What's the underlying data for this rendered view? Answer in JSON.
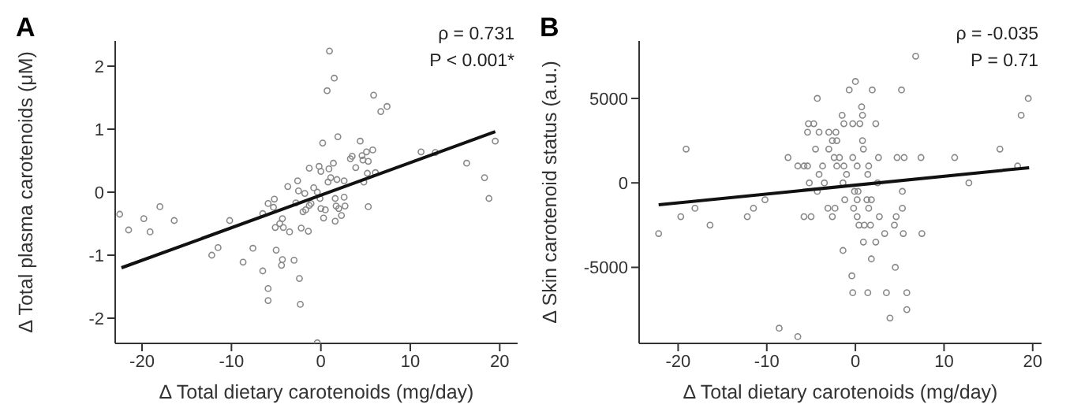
{
  "chart_data": [
    {
      "type": "scatter",
      "title": "A",
      "xlabel": "Δ Total dietary carotenoids (mg/day)",
      "ylabel": "Δ Total plasma carotenoids (μM)",
      "annotations": [
        "ρ = 0.731",
        "P < 0.001*"
      ],
      "xlim": [
        -23,
        22
      ],
      "xticks": [
        -20,
        -10,
        0,
        10,
        20
      ],
      "ylim": [
        -2.4,
        2.4
      ],
      "yticks": [
        -2,
        -1,
        0,
        1,
        2
      ],
      "series": [
        {
          "type": "scatter",
          "color": "#888888",
          "marker": "circle",
          "x": [
            -22.5,
            -21.5,
            -19.8,
            -19.1,
            -18.0,
            -16.4,
            -12.2,
            -11.5,
            -10.2,
            -8.7,
            -7.6,
            -6.5,
            -5.9,
            -5.9,
            -5.0,
            -4.3,
            -4.4,
            -3.0,
            -2.4,
            -2.3,
            -0.4,
            -6.5,
            -5.9,
            -5.2,
            -5.3,
            -5.1,
            -4.6,
            -4.2,
            -3.5,
            -4.3,
            -3.7,
            -2.6,
            -2.5,
            -2.8,
            -2.2,
            -2.0,
            -1.7,
            -1.4,
            -1.3,
            -1.8,
            -1.3,
            -1.1,
            -0.8,
            -0.4,
            -0.2,
            0,
            0.2,
            -0.1,
            0,
            0.3,
            0.5,
            0.8,
            0.9,
            1.1,
            1.4,
            1.6,
            1.8,
            1.7,
            1.6,
            2.0,
            2.3,
            2.6,
            2.7,
            2.6,
            3.3,
            3.5,
            3.9,
            4.4,
            4.6,
            4.7,
            5.1,
            5.2,
            5.3,
            5.8,
            4.8,
            5.3,
            6.1,
            11.2,
            12.8,
            16.3,
            18.3,
            18.8,
            19.5,
            0.96,
            1.5,
            0.7,
            5.9,
            6.7,
            7.4,
            1.9
          ],
          "values": [
            -0.35,
            -0.6,
            -0.42,
            -0.63,
            -0.23,
            -0.45,
            -1.0,
            -0.88,
            -0.45,
            -1.11,
            -0.89,
            -1.25,
            -1.53,
            -1.72,
            -0.92,
            -1.07,
            -1.16,
            -1.08,
            -1.37,
            -1.78,
            -2.39,
            -0.34,
            -0.18,
            -0.11,
            -0.24,
            -0.56,
            -0.5,
            -0.56,
            -0.63,
            -0.42,
            0.09,
            0.18,
            0.02,
            -0.17,
            -0.57,
            -0.31,
            -0.28,
            -0.62,
            0.38,
            -0.02,
            -0.21,
            -0.18,
            0.07,
            0.0,
            0.41,
            0.33,
            0.78,
            -0.1,
            -0.26,
            -0.41,
            -0.28,
            0.16,
            0.37,
            0.23,
            0.46,
            -0.1,
            0.2,
            -0.22,
            -0.46,
            -0.26,
            -0.37,
            -0.08,
            -0.22,
            0.18,
            0.53,
            0.57,
            0.39,
            0.81,
            0.58,
            0.51,
            0.64,
            0.3,
            0.49,
            0.67,
            0.16,
            -0.23,
            0.31,
            0.64,
            0.63,
            0.46,
            0.23,
            -0.1,
            0.81,
            2.24,
            1.81,
            1.61,
            1.54,
            1.28,
            1.36,
            0.88
          ]
        },
        {
          "type": "line",
          "color": "#111111",
          "marker": "none",
          "x": [
            -22.3,
            19.5
          ],
          "values": [
            -1.2,
            0.96
          ]
        }
      ]
    },
    {
      "type": "scatter",
      "title": "B",
      "xlabel": "Δ Total dietary carotenoids (mg/day)",
      "ylabel": "Δ Skin carotenoid status (a.u.)",
      "annotations": [
        "ρ = -0.035",
        "P = 0.71"
      ],
      "xlim": [
        -24.4,
        21
      ],
      "xticks": [
        -20,
        -10,
        0,
        10,
        20
      ],
      "ylim": [
        -9500,
        8400
      ],
      "yticks": [
        -5000,
        0,
        5000
      ],
      "series": [
        {
          "type": "scatter",
          "color": "#888888",
          "marker": "circle",
          "x": [
            -22.2,
            -19.1,
            -19.7,
            -18.1,
            -16.4,
            -12.2,
            -11.5,
            -10.2,
            -8.6,
            -6.5,
            -7.6,
            -6.5,
            -5.8,
            -5.4,
            -5.2,
            -5.8,
            -5.0,
            -4.3,
            -5.3,
            -4.7,
            -5.4,
            -4.5,
            -4.1,
            -3.7,
            -4.1,
            -3.5,
            -4.3,
            -3.0,
            -2.2,
            -2.6,
            -2.1,
            -2.4,
            -3.0,
            -1.8,
            -2.1,
            -1.3,
            -1.0,
            -1.4,
            -3.1,
            -2.3,
            -2.6,
            -1.2,
            -1.5,
            -1.3,
            -0.7,
            0,
            -0.3,
            0.5,
            -0.3,
            0.2,
            0.7,
            0.8,
            0.9,
            0.8,
            1.5,
            1.4,
            1.9,
            2.3,
            2.6,
            2.5,
            -0.1,
            0.3,
            0.2,
            -0.2,
            1.3,
            1.8,
            0.2,
            0.4,
            1.0,
            1.7,
            1.5,
            2.7,
            3.3,
            0.9,
            2.3,
            -1.4,
            1.8,
            -0.4,
            -0.3,
            1.4,
            3.5,
            4.5,
            3.9,
            5.8,
            5.8,
            4.4,
            4.6,
            5.3,
            5.3,
            5.4,
            7.5,
            4.7,
            5.5,
            5.2,
            6.8,
            7.4,
            11.2,
            12.8,
            16.3,
            18.3,
            18.7,
            19.5
          ],
          "values": [
            -3000,
            2000,
            -2000,
            -1500,
            -2500,
            -2000,
            -1500,
            -1000,
            -8600,
            -9100,
            1500,
            1000,
            1000,
            1000,
            0,
            -2000,
            -2000,
            5000,
            3500,
            3500,
            3000,
            2000,
            3000,
            1000,
            500,
            0,
            -500,
            3000,
            3000,
            2500,
            2500,
            1500,
            2000,
            1500,
            1000,
            1000,
            500,
            0,
            -1500,
            -1500,
            -2000,
            -1000,
            4000,
            3500,
            5500,
            6000,
            3500,
            3500,
            1500,
            1000,
            4500,
            4000,
            2000,
            2500,
            1000,
            500,
            5500,
            3500,
            1500,
            0,
            -500,
            -500,
            -1000,
            -1500,
            -1000,
            -1000,
            -2000,
            -2500,
            -2500,
            -2500,
            -1500,
            -2000,
            -3000,
            -3500,
            -3500,
            -4000,
            -4500,
            -5500,
            -6500,
            -6500,
            -6500,
            -5000,
            -8000,
            -6500,
            -7500,
            -2500,
            -2000,
            -1500,
            -500,
            -3000,
            -3000,
            1500,
            1500,
            5500,
            7500,
            1500,
            1500,
            0,
            2000,
            1000,
            4000,
            5000
          ]
        },
        {
          "type": "line",
          "color": "#111111",
          "marker": "none",
          "x": [
            -22.2,
            19.6
          ],
          "values": [
            -1300,
            900
          ]
        }
      ]
    }
  ]
}
